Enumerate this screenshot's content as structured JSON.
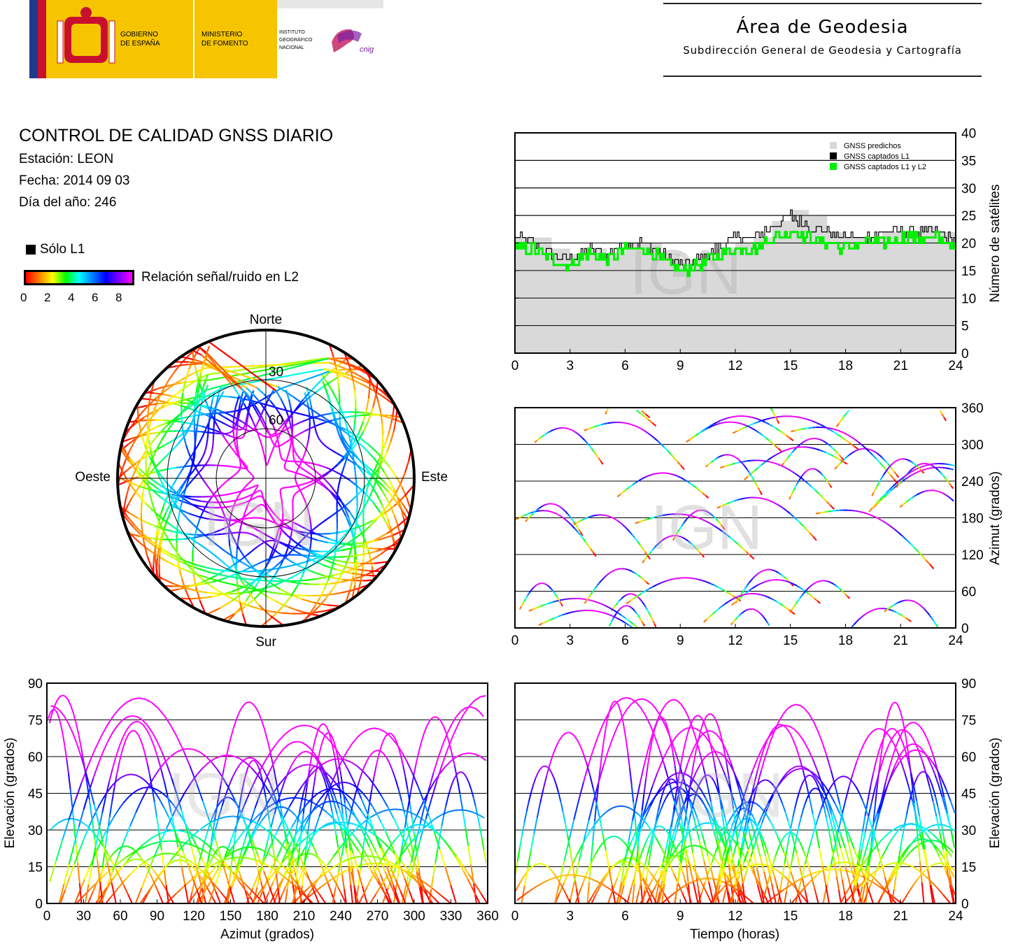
{
  "header": {
    "gov_line1": "GOBIERNO",
    "gov_line2": "DE ESPAÑA",
    "min_line1": "MINISTERIO",
    "min_line2": "DE FOMENTO",
    "inst_line1": "INSTITUTO",
    "inst_line2": "GEOGRÁFICO",
    "inst_line3": "NACIONAL",
    "cnig": "cnig",
    "area": "Área de Geodesia",
    "subdireccion": "Subdirección General de Geodesia y Cartografía"
  },
  "info": {
    "title": "CONTROL DE CALIDAD GNSS DIARIO",
    "station": "Estación: LEON",
    "date": "Fecha: 2014 09 03",
    "doy": "Día del año: 246"
  },
  "legend": {
    "l1_only": "Sólo L1",
    "snr_label": "Relación señal/ruido en L2",
    "snr_ticks": [
      "0",
      "2",
      "4",
      "6",
      "8"
    ]
  },
  "colors": {
    "predicted": "#d9d9d9",
    "l1": "#000000",
    "l1l2": "#00ee00",
    "snr_high": "#ff00ff",
    "snr_mid": "#0000ff"
  },
  "watermark": "IGN",
  "chart_data": [
    {
      "type": "area",
      "ylabel": "Número de satélites",
      "x_ticks": [
        "0",
        "3",
        "6",
        "9",
        "12",
        "15",
        "18",
        "21",
        "24"
      ],
      "y_ticks": [
        "0",
        "5",
        "10",
        "15",
        "20",
        "25",
        "30",
        "35",
        "40"
      ],
      "xlim": [
        0,
        24
      ],
      "ylim": [
        0,
        40
      ],
      "grid": true,
      "legend_position": "top-right",
      "x": [
        0,
        1,
        2,
        3,
        4,
        5,
        6,
        7,
        8,
        9,
        10,
        11,
        12,
        13,
        14,
        15,
        16,
        17,
        18,
        19,
        20,
        21,
        22,
        23,
        24
      ],
      "series": [
        {
          "name": "GNSS predichos",
          "values": [
            21,
            21,
            19,
            18,
            19,
            18,
            20,
            20,
            18,
            17,
            17,
            19,
            20,
            21,
            24,
            26,
            25,
            22,
            21,
            21,
            22,
            22,
            23,
            22,
            20
          ]
        },
        {
          "name": "GNSS captados L1",
          "values": [
            21,
            20,
            18,
            17,
            19,
            18,
            20,
            20,
            18,
            16,
            17,
            19,
            21,
            21,
            23,
            25,
            23,
            22,
            21,
            21,
            22,
            22,
            22,
            22,
            20
          ]
        },
        {
          "name": "GNSS captados L1 y L2",
          "values": [
            19,
            19,
            17,
            16,
            18,
            17,
            19,
            19,
            17,
            15,
            16,
            18,
            19,
            19,
            21,
            22,
            21,
            20,
            19,
            20,
            20,
            21,
            21,
            21,
            19
          ]
        }
      ]
    },
    {
      "type": "scatter",
      "title": "",
      "direction_labels": {
        "north": "Norte",
        "south": "Sur",
        "west": "Oeste",
        "east": "Este"
      },
      "elevation_rings": [
        "30",
        "60"
      ]
    },
    {
      "type": "scatter",
      "ylabel": "Azimut (grados)",
      "x_ticks": [
        "0",
        "3",
        "6",
        "9",
        "12",
        "15",
        "18",
        "21",
        "24"
      ],
      "y_ticks": [
        "0",
        "60",
        "120",
        "180",
        "240",
        "300",
        "360"
      ],
      "xlim": [
        0,
        24
      ],
      "ylim": [
        0,
        360
      ],
      "grid": true
    },
    {
      "type": "scatter",
      "xlabel": "Azimut (grados)",
      "ylabel": "Elevación (grados)",
      "x_ticks": [
        "0",
        "30",
        "60",
        "90",
        "120",
        "150",
        "180",
        "210",
        "240",
        "270",
        "300",
        "330",
        "360"
      ],
      "y_ticks": [
        "0",
        "15",
        "30",
        "45",
        "60",
        "75",
        "90"
      ],
      "xlim": [
        0,
        360
      ],
      "ylim": [
        0,
        90
      ],
      "grid": true
    },
    {
      "type": "scatter",
      "xlabel": "Tiempo (horas)",
      "ylabel": "Elevación (grados)",
      "x_ticks": [
        "0",
        "3",
        "6",
        "9",
        "12",
        "15",
        "18",
        "21",
        "24"
      ],
      "y_ticks": [
        "0",
        "15",
        "30",
        "45",
        "60",
        "75",
        "90"
      ],
      "xlim": [
        0,
        24
      ],
      "ylim": [
        0,
        90
      ],
      "grid": true
    }
  ]
}
